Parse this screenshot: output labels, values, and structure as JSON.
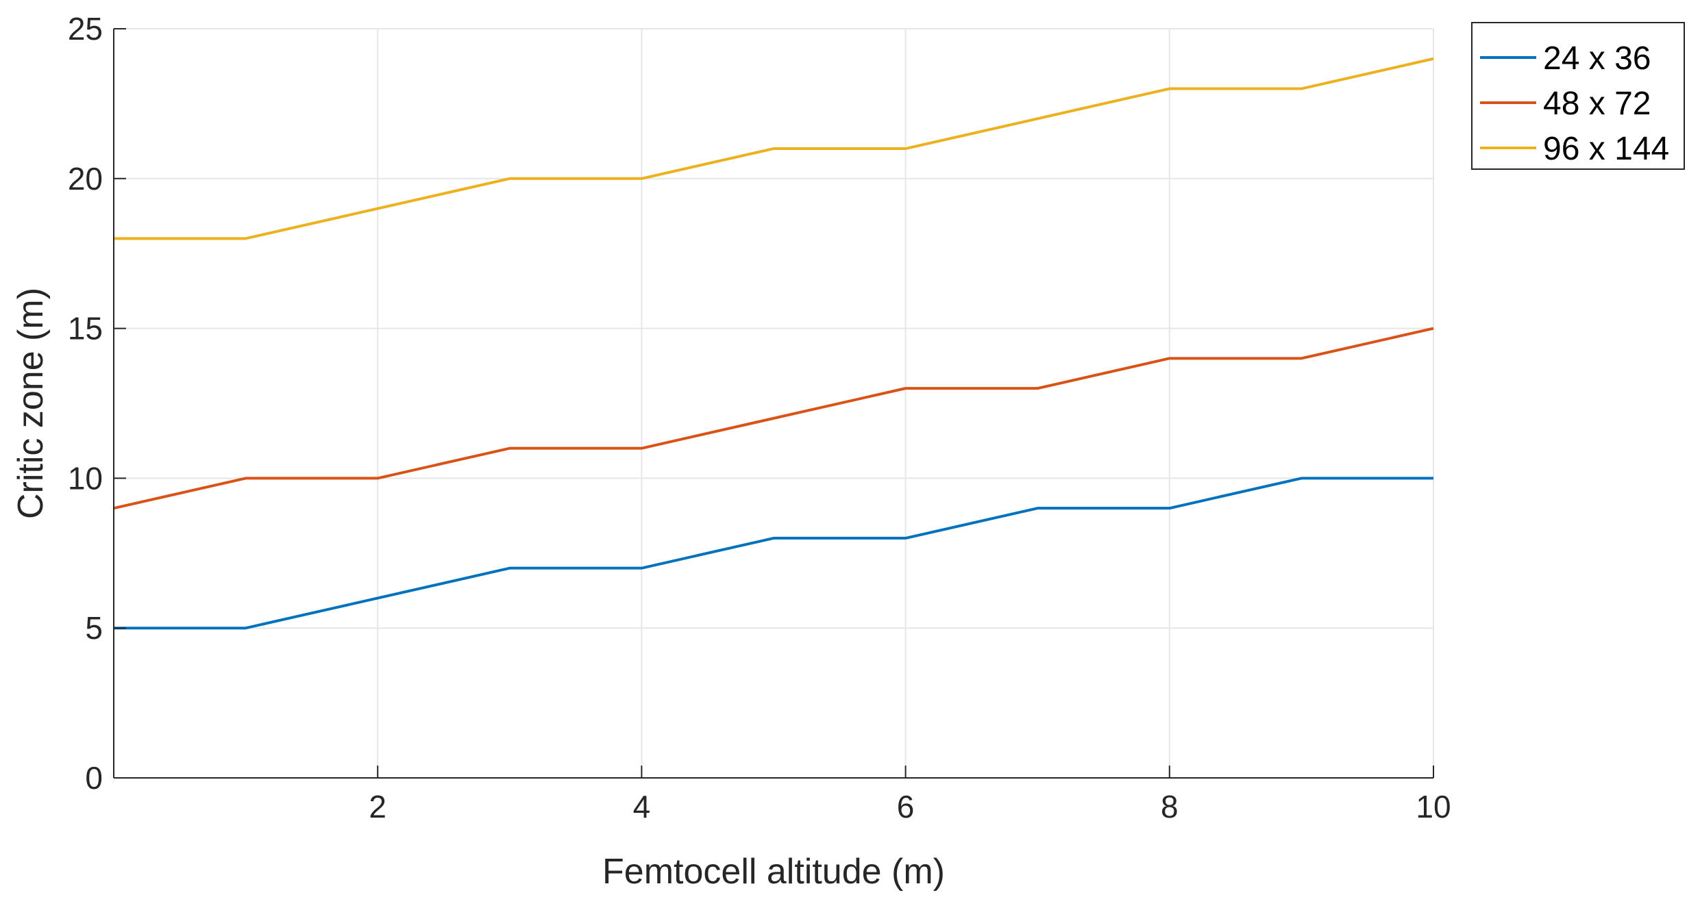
{
  "chart_data": {
    "type": "line",
    "title": "",
    "xlabel": "Femtocell altitude (m)",
    "ylabel": "Critic zone (m)",
    "xlim": [
      0,
      10
    ],
    "ylim": [
      0,
      25
    ],
    "xticks": [
      2,
      4,
      6,
      8,
      10
    ],
    "yticks": [
      0,
      5,
      10,
      15,
      20,
      25
    ],
    "grid": true,
    "legend_position": "outside-top-right",
    "x": [
      0,
      1,
      2,
      3,
      4,
      5,
      6,
      7,
      8,
      9,
      10
    ],
    "series": [
      {
        "name": "24 x 36",
        "color": "#0072BD",
        "values": [
          5,
          5,
          6,
          7,
          7,
          8,
          8,
          9,
          9,
          10,
          10
        ]
      },
      {
        "name": "48 x 72",
        "color": "#D95319",
        "values": [
          9,
          10,
          10,
          11,
          11,
          12,
          13,
          13,
          14,
          14,
          15
        ]
      },
      {
        "name": "96 x 144",
        "color": "#EDB120",
        "values": [
          18,
          18,
          19,
          20,
          20,
          21,
          21,
          22,
          23,
          23,
          24
        ]
      }
    ]
  }
}
